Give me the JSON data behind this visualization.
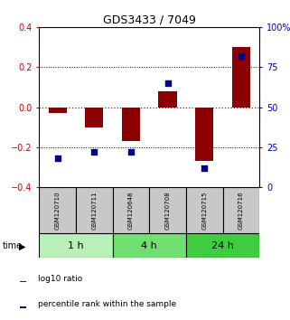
{
  "title": "GDS3433 / 7049",
  "samples": [
    "GSM120710",
    "GSM120711",
    "GSM120648",
    "GSM120708",
    "GSM120715",
    "GSM120716"
  ],
  "log10_ratio": [
    -0.03,
    -0.1,
    -0.17,
    0.08,
    -0.27,
    0.3
  ],
  "percentile_rank": [
    18,
    22,
    22,
    65,
    12,
    82
  ],
  "groups": [
    {
      "label": "1 h",
      "indices": [
        0,
        1
      ],
      "color": "#b8f0b8"
    },
    {
      "label": "4 h",
      "indices": [
        2,
        3
      ],
      "color": "#70e070"
    },
    {
      "label": "24 h",
      "indices": [
        4,
        5
      ],
      "color": "#40cc40"
    }
  ],
  "ylim": [
    -0.4,
    0.4
  ],
  "yticks_left": [
    -0.4,
    -0.2,
    0.0,
    0.2,
    0.4
  ],
  "yticks_right": [
    0,
    25,
    50,
    75,
    100
  ],
  "bar_color": "#8b0000",
  "dot_color": "#00008b",
  "zero_line_color": "#cc0000",
  "dotted_color": "#000000",
  "background_label": "#c8c8c8",
  "bar_width": 0.5,
  "dot_size": 25,
  "title_fontsize": 9,
  "tick_fontsize": 7,
  "sample_fontsize": 5,
  "group_fontsize": 8,
  "legend_fontsize": 6.5
}
